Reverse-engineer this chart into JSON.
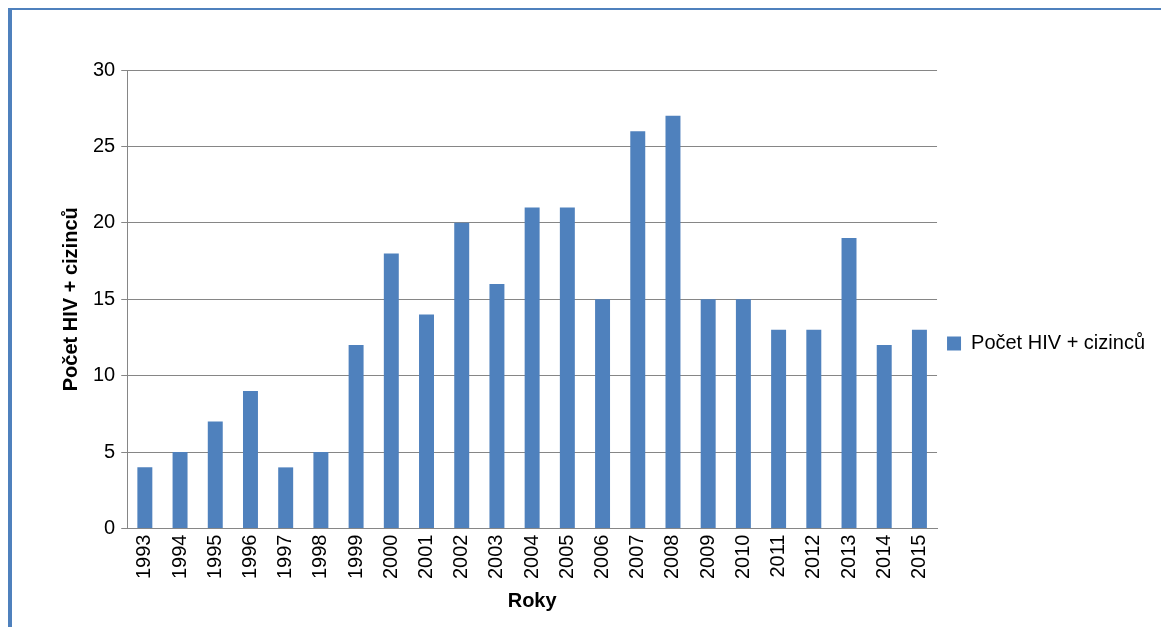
{
  "chart_data": {
    "type": "bar",
    "xlabel": "Roky",
    "ylabel": "Počet HIV + cizinců",
    "categories": [
      "1993",
      "1994",
      "1995",
      "1996",
      "1997",
      "1998",
      "1999",
      "2000",
      "2001",
      "2002",
      "2003",
      "2004",
      "2005",
      "2006",
      "2007",
      "2008",
      "2009",
      "2010",
      "2011",
      "2012",
      "2013",
      "2014",
      "2015"
    ],
    "series": [
      {
        "name": "Počet HIV + cizinců",
        "color": "#4f81bd",
        "values": [
          4,
          5,
          7,
          9,
          4,
          5,
          12,
          18,
          14,
          20,
          16,
          21,
          21,
          15,
          26,
          27,
          15,
          15,
          13,
          13,
          19,
          12,
          13
        ]
      }
    ],
    "ylim": [
      0,
      30
    ],
    "yticks": [
      0,
      5,
      10,
      15,
      20,
      25,
      30
    ],
    "grid": "y",
    "legend": "right"
  }
}
